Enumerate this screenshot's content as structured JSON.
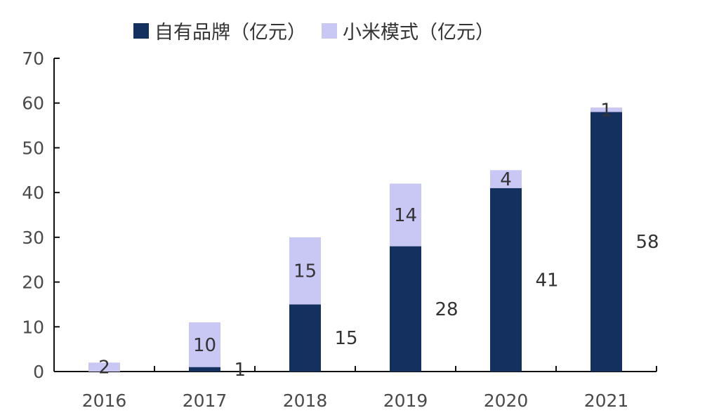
{
  "chart_data": {
    "type": "bar",
    "stacked": true,
    "categories": [
      "2016",
      "2017",
      "2018",
      "2019",
      "2020",
      "2021"
    ],
    "series": [
      {
        "name": "自有品牌（亿元）",
        "color": "#14305e",
        "values": [
          0,
          1,
          15,
          28,
          41,
          58
        ],
        "labels": [
          "",
          "1",
          "15",
          "28",
          "41",
          "58"
        ]
      },
      {
        "name": "小米模式（亿元）",
        "color": "#c9c8f5",
        "values": [
          2,
          10,
          15,
          14,
          4,
          1
        ],
        "labels": [
          "2",
          "10",
          "15",
          "14",
          "4",
          "1"
        ]
      }
    ],
    "ylim": [
      0,
      70
    ],
    "yticks": [
      "0",
      "10",
      "20",
      "30",
      "40",
      "50",
      "60",
      "70"
    ],
    "legend_position": "top"
  }
}
